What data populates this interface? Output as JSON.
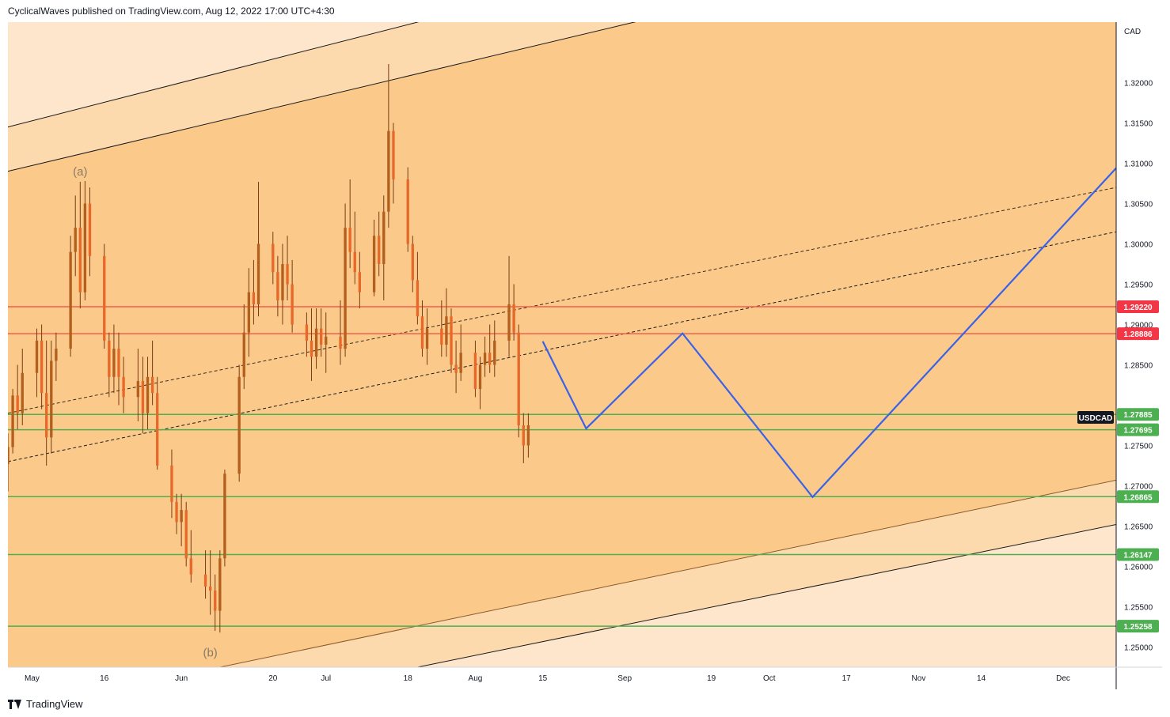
{
  "header": {
    "text": "CyclicalWaves published on TradingView.com, Aug 12, 2022 17:00 UTC+4:30"
  },
  "footer": {
    "text": "TradingView"
  },
  "chart_data": {
    "type": "candlestick",
    "symbol": "USDCAD",
    "currency_label": "CAD",
    "ylim": [
      1.2475,
      1.3275
    ],
    "y_ticks": [
      "1.32000",
      "1.31500",
      "1.31000",
      "1.30500",
      "1.30000",
      "1.29500",
      "1.29000",
      "1.28500",
      "1.27500",
      "1.27000",
      "1.26500",
      "1.26000",
      "1.25500",
      "1.25000"
    ],
    "x_ticks": [
      "May",
      "16",
      "Jun",
      "20",
      "Jul",
      "18",
      "Aug",
      "15",
      "Sep",
      "19",
      "Oct",
      "17",
      "Nov",
      "14",
      "Dec"
    ],
    "x_range": [
      "2022-04-26",
      "2022-12-12"
    ],
    "grid": false,
    "levels": [
      {
        "price": 1.2922,
        "label": "1.29220",
        "color": "#f0604a",
        "tag_color": "#f23645"
      },
      {
        "price": 1.28886,
        "label": "1.28886",
        "color": "#f0604a",
        "tag_color": "#f23645"
      },
      {
        "price": 1.27885,
        "label": "1.27885",
        "color": "#4caf50",
        "tag_color": "#4caf50"
      },
      {
        "price": 1.27695,
        "label": "1.27695",
        "color": "#4caf50",
        "tag_color": "#4caf50"
      },
      {
        "price": 1.26865,
        "label": "1.26865",
        "color": "#4caf50",
        "tag_color": "#4caf50"
      },
      {
        "price": 1.26147,
        "label": "1.26147",
        "color": "#4caf50",
        "tag_color": "#4caf50"
      },
      {
        "price": 1.25258,
        "label": "1.25258",
        "color": "#4caf50",
        "tag_color": "#4caf50"
      }
    ],
    "projection_path": [
      {
        "date": "2022-08-15",
        "price": 1.2879
      },
      {
        "date": "2022-08-24",
        "price": 1.2771
      },
      {
        "date": "2022-09-13",
        "price": 1.2889
      },
      {
        "date": "2022-10-10",
        "price": 1.2686
      },
      {
        "date": "2022-12-12",
        "price": 1.3094
      }
    ],
    "annotations": [
      {
        "text": "(a)",
        "date": "2022-05-11",
        "price": 1.3085
      },
      {
        "text": "(b)",
        "date": "2022-06-07",
        "price": 1.2488
      }
    ],
    "colors": {
      "channel_mid": "#fbca8b",
      "channel_outer": "#fdd9ae",
      "channel_far": "#fde6cc",
      "candle": "#b35f1e",
      "wick": "#7a3a10",
      "projection": "#3a62e8"
    },
    "candles": [
      {
        "d": "2022-04-26",
        "o": 1.2727,
        "h": 1.2765,
        "l": 1.2693,
        "c": 1.2748
      },
      {
        "d": "2022-04-27",
        "o": 1.2748,
        "h": 1.282,
        "l": 1.274,
        "c": 1.2812
      },
      {
        "d": "2022-04-28",
        "o": 1.2812,
        "h": 1.285,
        "l": 1.277,
        "c": 1.279
      },
      {
        "d": "2022-04-29",
        "o": 1.279,
        "h": 1.287,
        "l": 1.2775,
        "c": 1.284
      },
      {
        "d": "2022-05-02",
        "o": 1.284,
        "h": 1.2895,
        "l": 1.281,
        "c": 1.288
      },
      {
        "d": "2022-05-03",
        "o": 1.288,
        "h": 1.29,
        "l": 1.2795,
        "c": 1.2815
      },
      {
        "d": "2022-05-04",
        "o": 1.2815,
        "h": 1.288,
        "l": 1.2725,
        "c": 1.276
      },
      {
        "d": "2022-05-05",
        "o": 1.276,
        "h": 1.288,
        "l": 1.274,
        "c": 1.2855
      },
      {
        "d": "2022-05-06",
        "o": 1.2855,
        "h": 1.289,
        "l": 1.283,
        "c": 1.287
      },
      {
        "d": "2022-05-09",
        "o": 1.287,
        "h": 1.301,
        "l": 1.286,
        "c": 1.299
      },
      {
        "d": "2022-05-10",
        "o": 1.299,
        "h": 1.306,
        "l": 1.296,
        "c": 1.302
      },
      {
        "d": "2022-05-11",
        "o": 1.302,
        "h": 1.3077,
        "l": 1.292,
        "c": 1.294
      },
      {
        "d": "2022-05-12",
        "o": 1.294,
        "h": 1.3078,
        "l": 1.293,
        "c": 1.305
      },
      {
        "d": "2022-05-13",
        "o": 1.305,
        "h": 1.307,
        "l": 1.296,
        "c": 1.2985
      },
      {
        "d": "2022-05-16",
        "o": 1.2985,
        "h": 1.3,
        "l": 1.287,
        "c": 1.288
      },
      {
        "d": "2022-05-17",
        "o": 1.288,
        "h": 1.289,
        "l": 1.281,
        "c": 1.2835
      },
      {
        "d": "2022-05-18",
        "o": 1.2835,
        "h": 1.29,
        "l": 1.2815,
        "c": 1.287
      },
      {
        "d": "2022-05-19",
        "o": 1.287,
        "h": 1.289,
        "l": 1.28,
        "c": 1.2835
      },
      {
        "d": "2022-05-20",
        "o": 1.2835,
        "h": 1.286,
        "l": 1.279,
        "c": 1.281
      },
      {
        "d": "2022-05-23",
        "o": 1.281,
        "h": 1.287,
        "l": 1.278,
        "c": 1.283
      },
      {
        "d": "2022-05-24",
        "o": 1.283,
        "h": 1.286,
        "l": 1.2765,
        "c": 1.279
      },
      {
        "d": "2022-05-25",
        "o": 1.279,
        "h": 1.286,
        "l": 1.277,
        "c": 1.2835
      },
      {
        "d": "2022-05-26",
        "o": 1.2835,
        "h": 1.288,
        "l": 1.28,
        "c": 1.2815
      },
      {
        "d": "2022-05-27",
        "o": 1.2815,
        "h": 1.2835,
        "l": 1.272,
        "c": 1.2725
      },
      {
        "d": "2022-05-30",
        "o": 1.2725,
        "h": 1.2745,
        "l": 1.266,
        "c": 1.268
      },
      {
        "d": "2022-05-31",
        "o": 1.268,
        "h": 1.269,
        "l": 1.264,
        "c": 1.2655
      },
      {
        "d": "2022-06-01",
        "o": 1.2655,
        "h": 1.269,
        "l": 1.2625,
        "c": 1.267
      },
      {
        "d": "2022-06-02",
        "o": 1.267,
        "h": 1.268,
        "l": 1.26,
        "c": 1.261
      },
      {
        "d": "2022-06-03",
        "o": 1.261,
        "h": 1.2645,
        "l": 1.258,
        "c": 1.259
      },
      {
        "d": "2022-06-06",
        "o": 1.259,
        "h": 1.262,
        "l": 1.256,
        "c": 1.2575
      },
      {
        "d": "2022-06-07",
        "o": 1.2575,
        "h": 1.262,
        "l": 1.254,
        "c": 1.257
      },
      {
        "d": "2022-06-08",
        "o": 1.257,
        "h": 1.259,
        "l": 1.252,
        "c": 1.2545
      },
      {
        "d": "2022-06-09",
        "o": 1.2545,
        "h": 1.262,
        "l": 1.2518,
        "c": 1.261
      },
      {
        "d": "2022-06-10",
        "o": 1.261,
        "h": 1.272,
        "l": 1.26,
        "c": 1.2715
      },
      {
        "d": "2022-06-13",
        "o": 1.2715,
        "h": 1.285,
        "l": 1.2705,
        "c": 1.2835
      },
      {
        "d": "2022-06-14",
        "o": 1.2835,
        "h": 1.2925,
        "l": 1.282,
        "c": 1.289
      },
      {
        "d": "2022-06-15",
        "o": 1.289,
        "h": 1.297,
        "l": 1.286,
        "c": 1.294
      },
      {
        "d": "2022-06-16",
        "o": 1.294,
        "h": 1.298,
        "l": 1.29,
        "c": 1.2925
      },
      {
        "d": "2022-06-17",
        "o": 1.2925,
        "h": 1.3077,
        "l": 1.291,
        "c": 1.3
      },
      {
        "d": "2022-06-20",
        "o": 1.3,
        "h": 1.3015,
        "l": 1.295,
        "c": 1.2965
      },
      {
        "d": "2022-06-21",
        "o": 1.2965,
        "h": 1.2985,
        "l": 1.291,
        "c": 1.293
      },
      {
        "d": "2022-06-22",
        "o": 1.293,
        "h": 1.3,
        "l": 1.29,
        "c": 1.2975
      },
      {
        "d": "2022-06-23",
        "o": 1.2975,
        "h": 1.301,
        "l": 1.293,
        "c": 1.295
      },
      {
        "d": "2022-06-24",
        "o": 1.295,
        "h": 1.298,
        "l": 1.289,
        "c": 1.29
      },
      {
        "d": "2022-06-27",
        "o": 1.29,
        "h": 1.2915,
        "l": 1.286,
        "c": 1.288
      },
      {
        "d": "2022-06-28",
        "o": 1.288,
        "h": 1.292,
        "l": 1.283,
        "c": 1.286
      },
      {
        "d": "2022-06-29",
        "o": 1.286,
        "h": 1.292,
        "l": 1.2845,
        "c": 1.2895
      },
      {
        "d": "2022-06-30",
        "o": 1.2895,
        "h": 1.292,
        "l": 1.286,
        "c": 1.2875
      },
      {
        "d": "2022-07-01",
        "o": 1.2875,
        "h": 1.2915,
        "l": 1.284,
        "c": 1.2885
      },
      {
        "d": "2022-07-04",
        "o": 1.2885,
        "h": 1.293,
        "l": 1.285,
        "c": 1.287
      },
      {
        "d": "2022-07-05",
        "o": 1.287,
        "h": 1.305,
        "l": 1.286,
        "c": 1.302
      },
      {
        "d": "2022-07-06",
        "o": 1.302,
        "h": 1.308,
        "l": 1.297,
        "c": 1.299
      },
      {
        "d": "2022-07-07",
        "o": 1.299,
        "h": 1.304,
        "l": 1.295,
        "c": 1.2965
      },
      {
        "d": "2022-07-08",
        "o": 1.2965,
        "h": 1.299,
        "l": 1.292,
        "c": 1.294
      },
      {
        "d": "2022-07-11",
        "o": 1.294,
        "h": 1.303,
        "l": 1.2935,
        "c": 1.301
      },
      {
        "d": "2022-07-12",
        "o": 1.301,
        "h": 1.304,
        "l": 1.296,
        "c": 1.2975
      },
      {
        "d": "2022-07-13",
        "o": 1.2975,
        "h": 1.306,
        "l": 1.293,
        "c": 1.304
      },
      {
        "d": "2022-07-14",
        "o": 1.304,
        "h": 1.3223,
        "l": 1.302,
        "c": 1.314
      },
      {
        "d": "2022-07-15",
        "o": 1.314,
        "h": 1.315,
        "l": 1.305,
        "c": 1.308
      },
      {
        "d": "2022-07-18",
        "o": 1.308,
        "h": 1.3095,
        "l": 1.299,
        "c": 1.3
      },
      {
        "d": "2022-07-19",
        "o": 1.3,
        "h": 1.301,
        "l": 1.294,
        "c": 1.2955
      },
      {
        "d": "2022-07-20",
        "o": 1.2955,
        "h": 1.299,
        "l": 1.29,
        "c": 1.291
      },
      {
        "d": "2022-07-21",
        "o": 1.291,
        "h": 1.293,
        "l": 1.286,
        "c": 1.287
      },
      {
        "d": "2022-07-22",
        "o": 1.287,
        "h": 1.292,
        "l": 1.285,
        "c": 1.2895
      },
      {
        "d": "2022-07-25",
        "o": 1.2895,
        "h": 1.293,
        "l": 1.286,
        "c": 1.2875
      },
      {
        "d": "2022-07-26",
        "o": 1.2875,
        "h": 1.2945,
        "l": 1.286,
        "c": 1.291
      },
      {
        "d": "2022-07-27",
        "o": 1.291,
        "h": 1.292,
        "l": 1.284,
        "c": 1.285
      },
      {
        "d": "2022-07-28",
        "o": 1.285,
        "h": 1.288,
        "l": 1.2815,
        "c": 1.284
      },
      {
        "d": "2022-07-29",
        "o": 1.284,
        "h": 1.29,
        "l": 1.283,
        "c": 1.2865
      },
      {
        "d": "2022-08-01",
        "o": 1.2865,
        "h": 1.288,
        "l": 1.281,
        "c": 1.282
      },
      {
        "d": "2022-08-02",
        "o": 1.282,
        "h": 1.286,
        "l": 1.2795,
        "c": 1.285
      },
      {
        "d": "2022-08-03",
        "o": 1.285,
        "h": 1.2885,
        "l": 1.2835,
        "c": 1.2865
      },
      {
        "d": "2022-08-04",
        "o": 1.2865,
        "h": 1.29,
        "l": 1.284,
        "c": 1.285
      },
      {
        "d": "2022-08-05",
        "o": 1.285,
        "h": 1.2905,
        "l": 1.2835,
        "c": 1.288
      },
      {
        "d": "2022-08-08",
        "o": 1.288,
        "h": 1.2985,
        "l": 1.286,
        "c": 1.2925
      },
      {
        "d": "2022-08-09",
        "o": 1.2925,
        "h": 1.295,
        "l": 1.288,
        "c": 1.289
      },
      {
        "d": "2022-08-10",
        "o": 1.289,
        "h": 1.29,
        "l": 1.276,
        "c": 1.2775
      },
      {
        "d": "2022-08-11",
        "o": 1.2775,
        "h": 1.279,
        "l": 1.2728,
        "c": 1.275
      },
      {
        "d": "2022-08-12",
        "o": 1.275,
        "h": 1.279,
        "l": 1.2735,
        "c": 1.2775
      }
    ]
  }
}
